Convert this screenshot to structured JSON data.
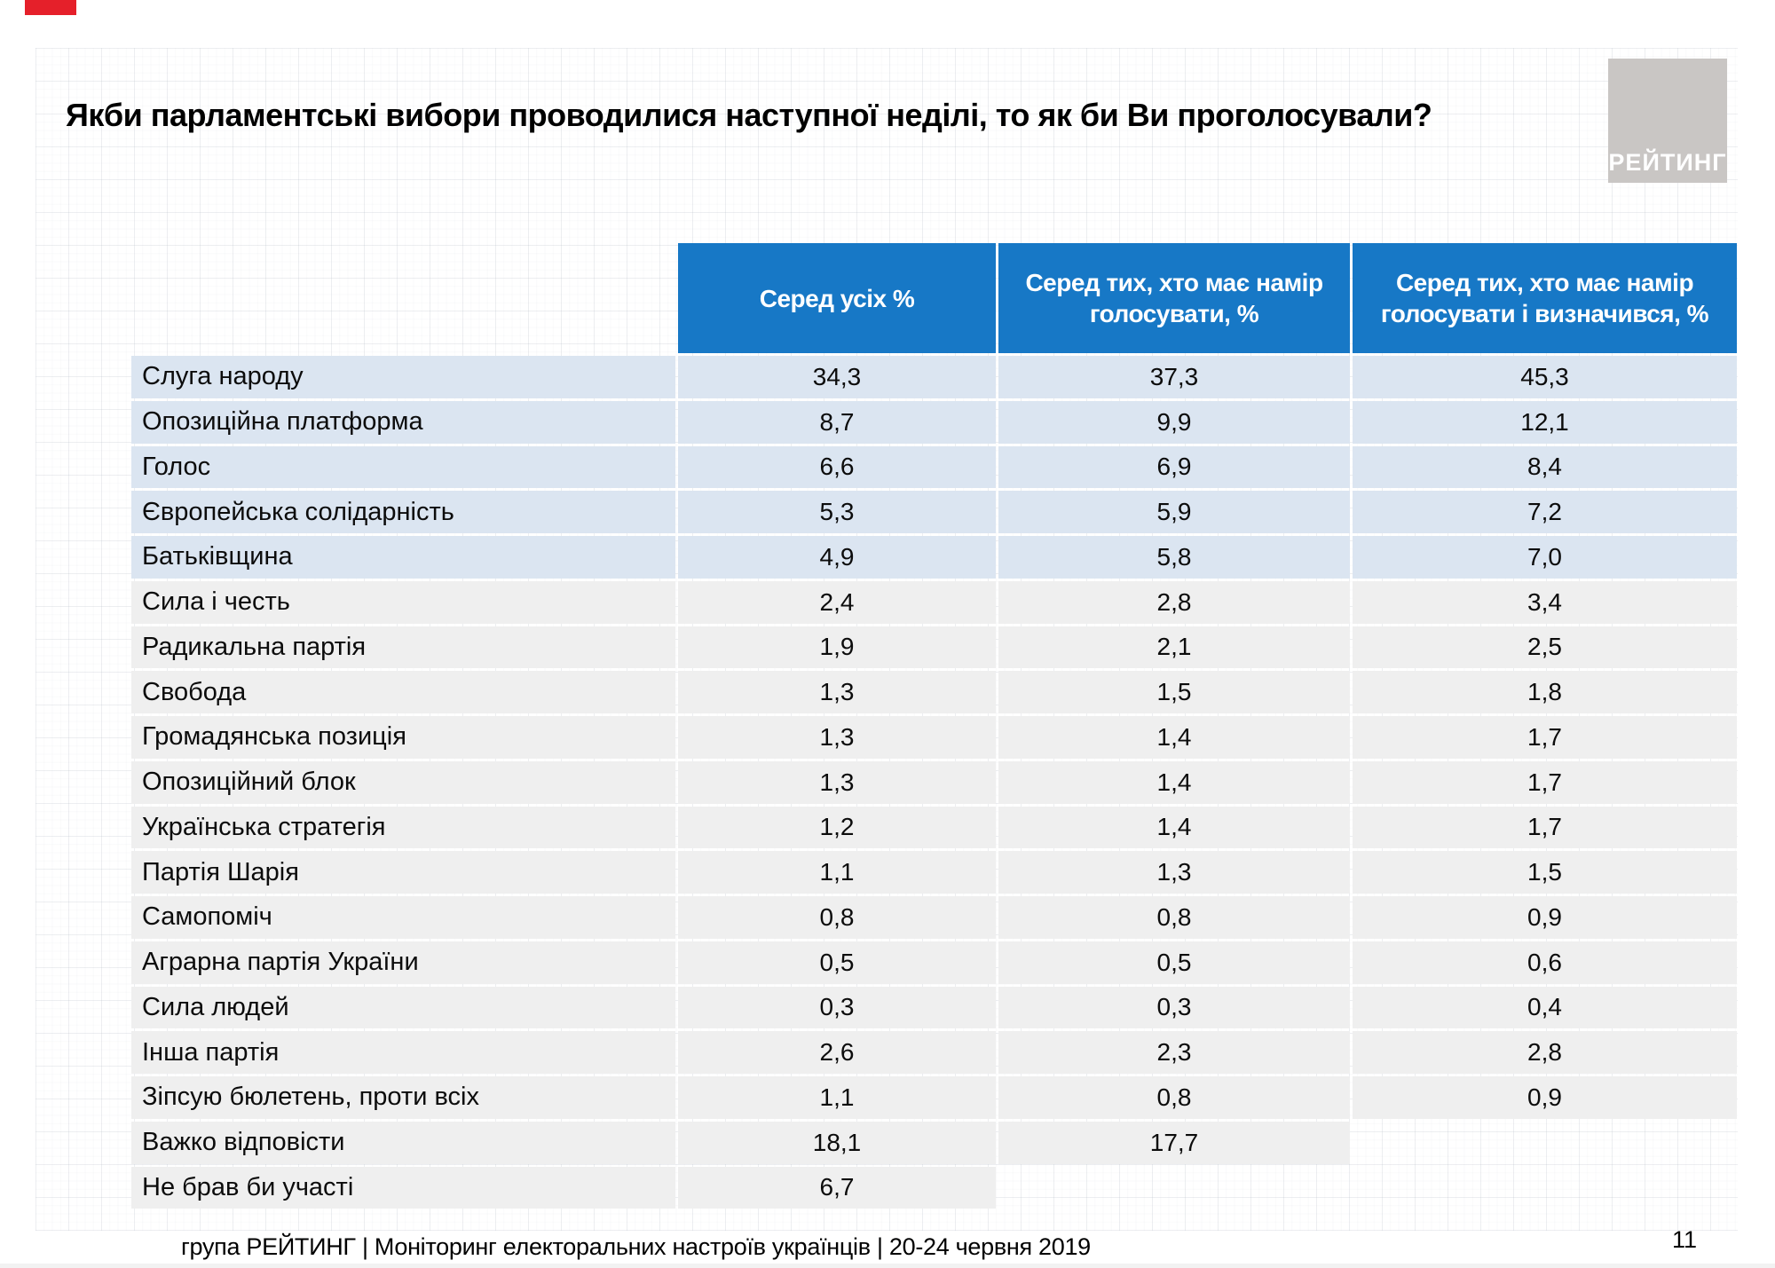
{
  "header": {
    "title": "Якби парламентські вибори проводилися наступної неділі, то як би Ви проголосували?",
    "logo_text": "РЕЙТИНГ"
  },
  "chart_data": {
    "type": "table",
    "title": "Якби парламентські вибори проводилися наступної неділі, то як би Ви проголосували?",
    "columns": [
      "Серед усіх %",
      "Серед тих, хто має намір голосувати, %",
      "Серед тих, хто має намір голосувати і визначився, %"
    ],
    "rows": [
      {
        "label": "Слуга народу",
        "values": [
          "34,3",
          "37,3",
          "45,3"
        ],
        "highlight": true
      },
      {
        "label": "Опозиційна платформа",
        "values": [
          "8,7",
          "9,9",
          "12,1"
        ],
        "highlight": true
      },
      {
        "label": "Голос",
        "values": [
          "6,6",
          "6,9",
          "8,4"
        ],
        "highlight": true
      },
      {
        "label": "Європейська солідарність",
        "values": [
          "5,3",
          "5,9",
          "7,2"
        ],
        "highlight": true
      },
      {
        "label": "Батьківщина",
        "values": [
          "4,9",
          "5,8",
          "7,0"
        ],
        "highlight": true
      },
      {
        "label": "Сила і честь",
        "values": [
          "2,4",
          "2,8",
          "3,4"
        ],
        "highlight": false
      },
      {
        "label": "Радикальна партія",
        "values": [
          "1,9",
          "2,1",
          "2,5"
        ],
        "highlight": false
      },
      {
        "label": "Свобода",
        "values": [
          "1,3",
          "1,5",
          "1,8"
        ],
        "highlight": false
      },
      {
        "label": "Громадянська позиція",
        "values": [
          "1,3",
          "1,4",
          "1,7"
        ],
        "highlight": false
      },
      {
        "label": "Опозиційний блок",
        "values": [
          "1,3",
          "1,4",
          "1,7"
        ],
        "highlight": false
      },
      {
        "label": "Українська стратегія",
        "values": [
          "1,2",
          "1,4",
          "1,7"
        ],
        "highlight": false
      },
      {
        "label": "Партія Шарія",
        "values": [
          "1,1",
          "1,3",
          "1,5"
        ],
        "highlight": false
      },
      {
        "label": "Самопоміч",
        "values": [
          "0,8",
          "0,8",
          "0,9"
        ],
        "highlight": false
      },
      {
        "label": "Аграрна партія України",
        "values": [
          "0,5",
          "0,5",
          "0,6"
        ],
        "highlight": false
      },
      {
        "label": "Сила людей",
        "values": [
          "0,3",
          "0,3",
          "0,4"
        ],
        "highlight": false
      },
      {
        "label": "Інша партія",
        "values": [
          "2,6",
          "2,3",
          "2,8"
        ],
        "highlight": false
      },
      {
        "label": "Зіпсую бюлетень, проти всіх",
        "values": [
          "1,1",
          "0,8",
          "0,9"
        ],
        "highlight": false
      },
      {
        "label": "Важко відповісти",
        "values": [
          "18,1",
          "17,7",
          null
        ],
        "highlight": false
      },
      {
        "label": "Не брав би участі",
        "values": [
          "6,7",
          null,
          null
        ],
        "highlight": false
      }
    ],
    "colors": {
      "header_bg": "#1778C6",
      "highlight_row_bg": "#DBE5F1",
      "row_bg": "#EFEFEF",
      "logo_bg": "#C9C6C4"
    }
  },
  "footer": {
    "caption": "група РЕЙТИНГ | Моніторинг електоральних настроїв українців | 20-24 червня 2019",
    "page_number": "11"
  }
}
